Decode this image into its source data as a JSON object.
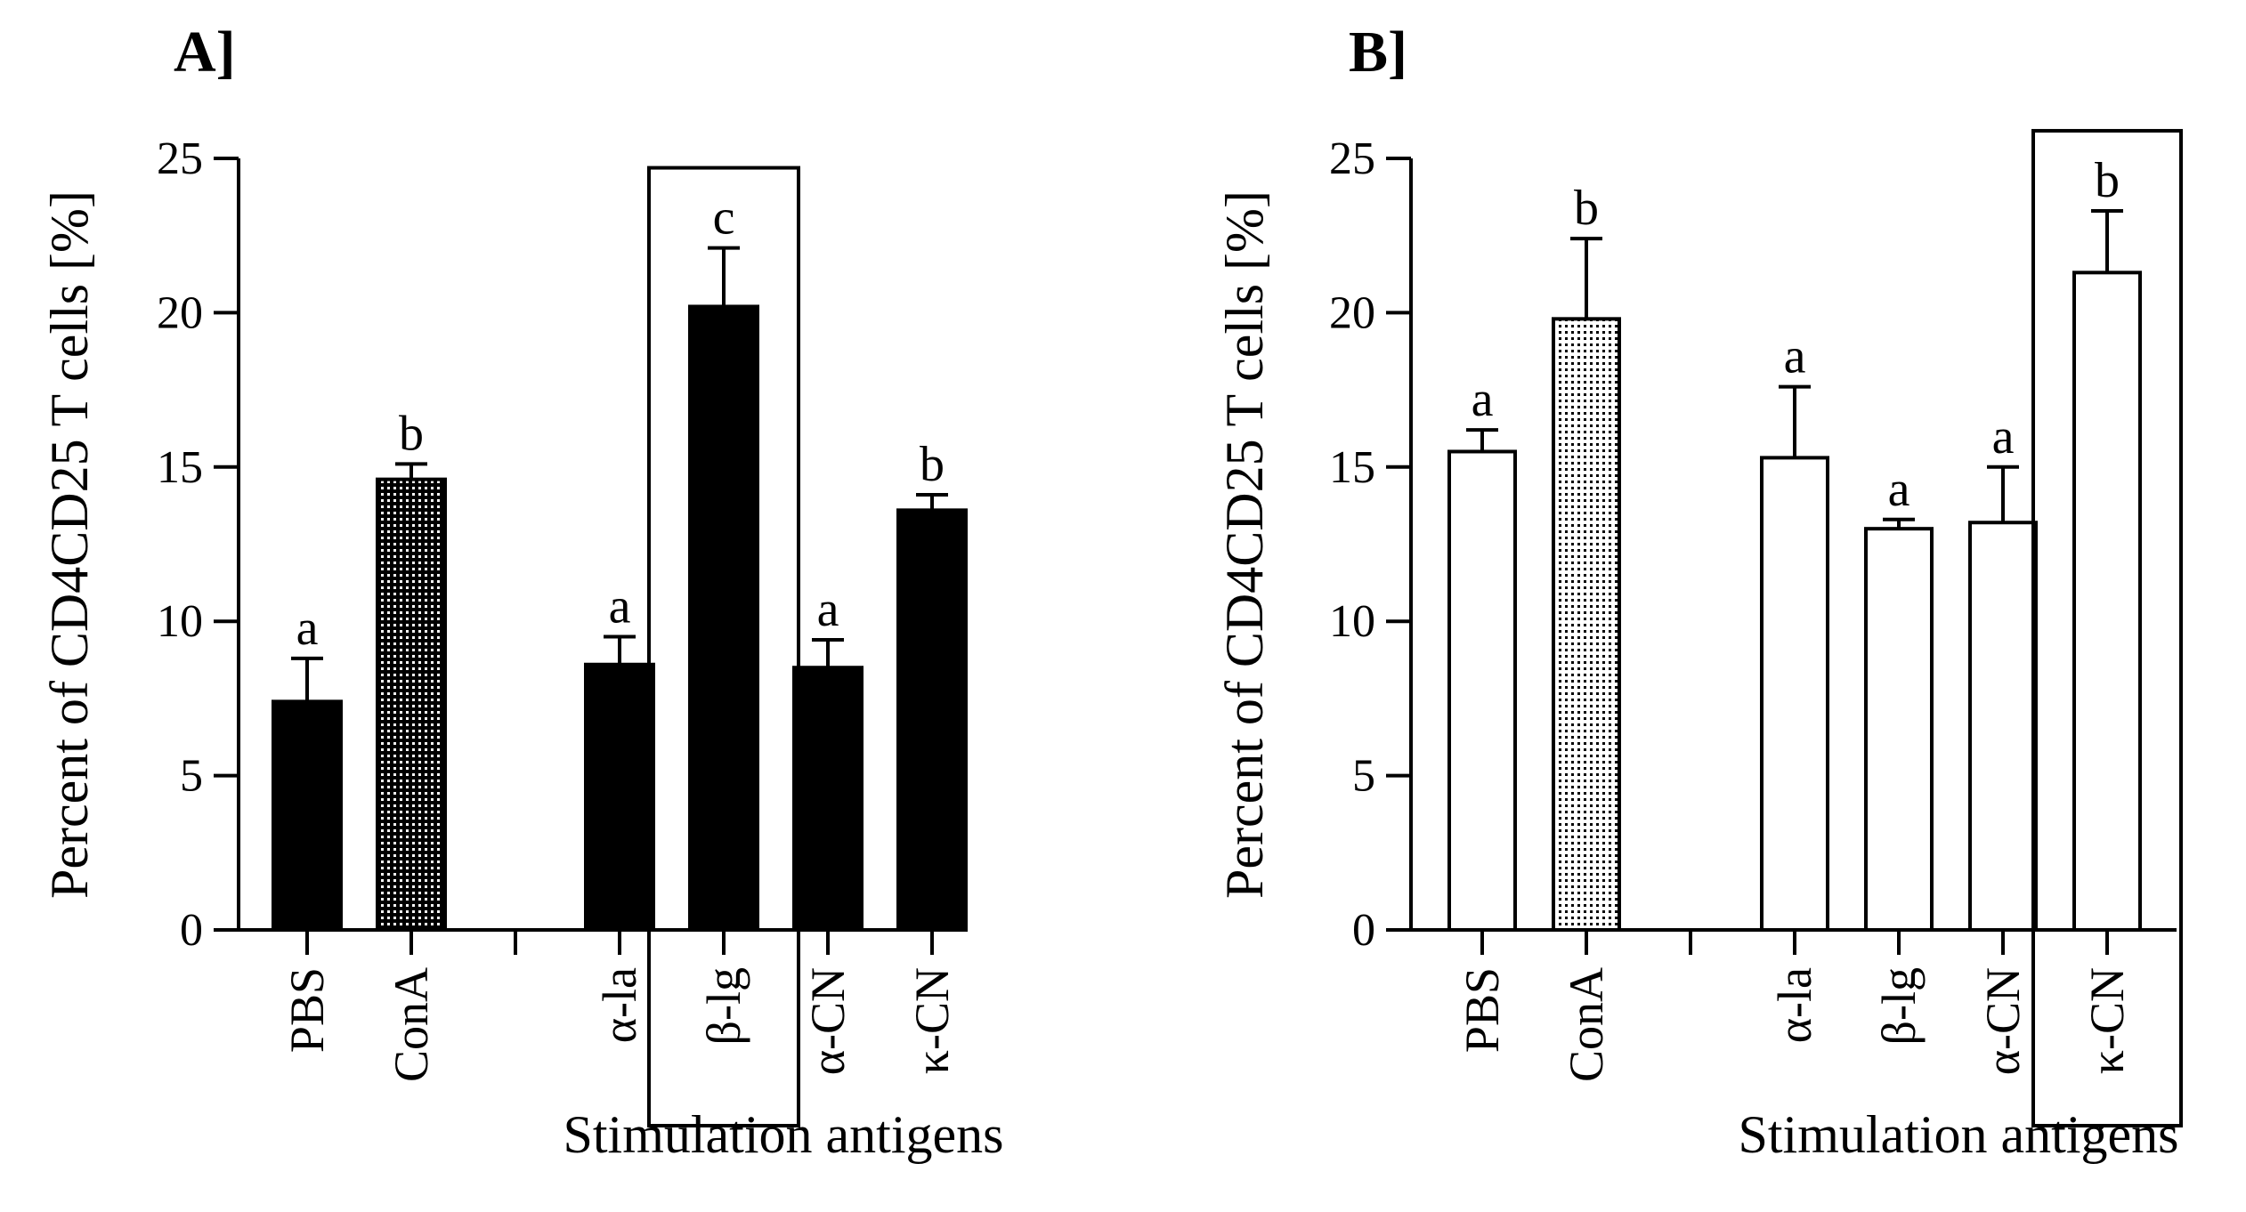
{
  "colors": {
    "filled_bar": "#000000",
    "open_bar": "#ffffff",
    "stroke": "#000000"
  },
  "chart_data": [
    {
      "type": "bar",
      "panel_label": "A]",
      "ylabel": "Percent of CD4CD25 T cells [%]",
      "xlabel": "Stimulation antigens",
      "ylim": [
        0,
        25
      ],
      "yticks": [
        "0",
        "5",
        "10",
        "15",
        "20",
        "25"
      ],
      "bar_style": "filled",
      "categories": [
        "PBS",
        "ConA",
        "",
        "α-la",
        "β-lg",
        "α-CN",
        "κ-CN"
      ],
      "values": [
        7.4,
        14.6,
        null,
        8.6,
        20.2,
        8.5,
        13.6
      ],
      "errors": [
        1.4,
        0.5,
        null,
        0.9,
        1.9,
        0.9,
        0.5
      ],
      "significance": [
        "a",
        "b",
        "",
        "a",
        "c",
        "a",
        "b"
      ],
      "hatched": [
        "ConA"
      ],
      "boxed": "β-lg"
    },
    {
      "type": "bar",
      "panel_label": "B]",
      "ylabel": "Percent of CD4CD25 T cells [%]",
      "xlabel": "Stimulation antigens",
      "ylim": [
        0,
        25
      ],
      "yticks": [
        "0",
        "5",
        "10",
        "15",
        "20",
        "25"
      ],
      "bar_style": "open",
      "categories": [
        "PBS",
        "ConA",
        "",
        "α-la",
        "β-lg",
        "α-CN",
        "κ-CN"
      ],
      "values": [
        15.5,
        19.8,
        null,
        15.3,
        13.0,
        13.2,
        21.3
      ],
      "errors": [
        0.7,
        2.6,
        null,
        2.3,
        0.3,
        1.8,
        2.0
      ],
      "significance": [
        "a",
        "b",
        "",
        "a",
        "a",
        "a",
        "b"
      ],
      "hatched": [
        "ConA"
      ],
      "boxed": "κ-CN"
    }
  ]
}
